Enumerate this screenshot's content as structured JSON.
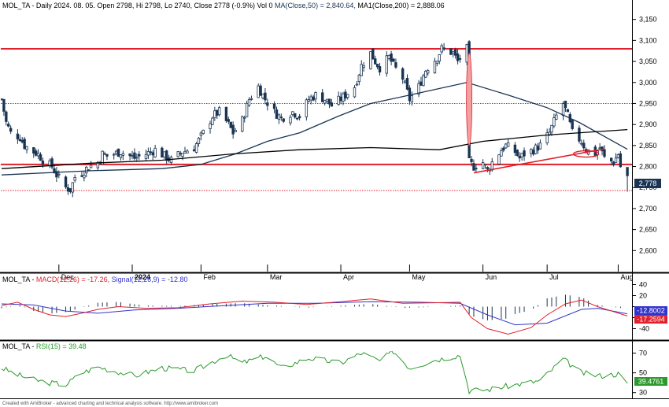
{
  "colors": {
    "price": "#1a3553",
    "ma50": "#1a3553",
    "ma200": "#000000",
    "resistance": "#e0202a",
    "gap_fill": "#f4a0a0",
    "macd_line": "#e0202a",
    "signal_line": "#3333cc",
    "histogram": "#1a3553",
    "rsi_line": "#2d9a2d",
    "badge_price": "#1a3553",
    "badge_signal": "#3333cc",
    "badge_macd": "#e0202a",
    "badge_rsi": "#2d9a2d",
    "separator": "#000000"
  },
  "price_panel": {
    "title_parts": {
      "head": "MOL_TA - Daily 2024. 08. 05. Open 2798, Hi 2798, Lo 2740, Close 2778 (-0.9%) Vol 0 ",
      "ma50": "MA(Close,50) = 2,840.64,",
      "ma200": " MA1(Close,200) = 2,888.06"
    },
    "y_ticks": [
      "3,150",
      "3,100",
      "3,050",
      "3,000",
      "2,950",
      "2,900",
      "2,850",
      "2,800",
      "2,750",
      "2,700",
      "2,650",
      "2,600"
    ],
    "x_labels": [
      "Dec",
      "2024",
      "Feb",
      "Mar",
      "Apr",
      "May",
      "Jun",
      "Jul",
      "Aug"
    ],
    "last_price_badge": "2,778"
  },
  "macd_panel": {
    "title_parts": {
      "head": "MOL_TA - ",
      "macd": "MACD(12,26) = -17.26,",
      "signal": " Signal(12,26,9) = -12.80"
    },
    "y_ticks": [
      "40",
      "20",
      "0",
      "-20",
      "-40"
    ],
    "badge_signal": "-12.8002",
    "badge_macd": "-17.2594"
  },
  "rsi_panel": {
    "title_parts": {
      "head": "MOL_TA - ",
      "rsi": "RSI(15) = 39.48"
    },
    "y_ticks": [
      "70",
      "50",
      "30"
    ],
    "badge_rsi": "39.4761"
  },
  "footer": "Created with AmiBroker - advanced charting and technical analysis software. http://www.amibroker.com",
  "chart_data": [
    {
      "type": "candlestick",
      "title": "MOL_TA - Daily 2024. 08. 05. Open 2798, Hi 2798, Lo 2740, Close 2778 (-0.9%) Vol 0",
      "ylim": [
        2550,
        3170
      ],
      "x_range": [
        "2023-11-06",
        "2024-08-06"
      ],
      "x_ticks": [
        {
          "label": "Dec",
          "date": "2023-12-01"
        },
        {
          "label": "2024",
          "date": "2024-01-02"
        },
        {
          "label": "Feb",
          "date": "2024-02-01"
        },
        {
          "label": "Mar",
          "date": "2024-03-01"
        },
        {
          "label": "Apr",
          "date": "2024-04-02"
        },
        {
          "label": "May",
          "date": "2024-05-02"
        },
        {
          "label": "Jun",
          "date": "2024-06-03"
        },
        {
          "label": "Jul",
          "date": "2024-07-01"
        },
        {
          "label": "Aug",
          "date": "2024-08-01"
        }
      ],
      "close_path": [
        [
          "2023-11-06",
          2960
        ],
        [
          "2023-11-08",
          2905
        ],
        [
          "2023-11-10",
          2880
        ],
        [
          "2023-11-14",
          2870
        ],
        [
          "2023-11-16",
          2850
        ],
        [
          "2023-11-20",
          2835
        ],
        [
          "2023-11-22",
          2830
        ],
        [
          "2023-11-24",
          2815
        ],
        [
          "2023-11-28",
          2800
        ],
        [
          "2023-11-30",
          2780
        ],
        [
          "2023-12-04",
          2750
        ],
        [
          "2023-12-06",
          2745
        ],
        [
          "2023-12-08",
          2775
        ],
        [
          "2023-12-12",
          2790
        ],
        [
          "2023-12-14",
          2800
        ],
        [
          "2023-12-18",
          2810
        ],
        [
          "2023-12-20",
          2830
        ],
        [
          "2023-12-22",
          2825
        ],
        [
          "2023-12-28",
          2835
        ],
        [
          "2024-01-03",
          2820
        ],
        [
          "2024-01-08",
          2830
        ],
        [
          "2024-01-12",
          2840
        ],
        [
          "2024-01-16",
          2825
        ],
        [
          "2024-01-19",
          2815
        ],
        [
          "2024-01-24",
          2835
        ],
        [
          "2024-01-29",
          2845
        ],
        [
          "2024-02-02",
          2880
        ],
        [
          "2024-02-06",
          2920
        ],
        [
          "2024-02-09",
          2930
        ],
        [
          "2024-02-13",
          2900
        ],
        [
          "2024-02-15",
          2880
        ],
        [
          "2024-02-19",
          2910
        ],
        [
          "2024-02-22",
          2960
        ],
        [
          "2024-02-26",
          2990
        ],
        [
          "2024-02-29",
          2960
        ],
        [
          "2024-03-04",
          2930
        ],
        [
          "2024-03-07",
          2915
        ],
        [
          "2024-03-12",
          2930
        ],
        [
          "2024-03-15",
          2920
        ],
        [
          "2024-03-19",
          2960
        ],
        [
          "2024-03-22",
          2970
        ],
        [
          "2024-03-26",
          2960
        ],
        [
          "2024-03-29",
          2945
        ],
        [
          "2024-04-03",
          2965
        ],
        [
          "2024-04-08",
          2990
        ],
        [
          "2024-04-11",
          3040
        ],
        [
          "2024-04-15",
          3070
        ],
        [
          "2024-04-17",
          3050
        ],
        [
          "2024-04-19",
          3035
        ],
        [
          "2024-04-23",
          3060
        ],
        [
          "2024-04-25",
          3040
        ],
        [
          "2024-04-29",
          3010
        ],
        [
          "2024-05-02",
          2960
        ],
        [
          "2024-05-06",
          2990
        ],
        [
          "2024-05-09",
          3030
        ],
        [
          "2024-05-14",
          3060
        ],
        [
          "2024-05-16",
          3080
        ],
        [
          "2024-05-21",
          3070
        ],
        [
          "2024-05-23",
          3050
        ],
        [
          "2024-05-27",
          3080
        ],
        [
          "2024-05-28",
          2810
        ],
        [
          "2024-05-30",
          2800
        ],
        [
          "2024-06-03",
          2810
        ],
        [
          "2024-06-05",
          2790
        ],
        [
          "2024-06-07",
          2810
        ],
        [
          "2024-06-11",
          2840
        ],
        [
          "2024-06-13",
          2850
        ],
        [
          "2024-06-17",
          2835
        ],
        [
          "2024-06-19",
          2820
        ],
        [
          "2024-06-21",
          2830
        ],
        [
          "2024-06-25",
          2840
        ],
        [
          "2024-06-28",
          2850
        ],
        [
          "2024-07-02",
          2880
        ],
        [
          "2024-07-05",
          2920
        ],
        [
          "2024-07-08",
          2950
        ],
        [
          "2024-07-10",
          2920
        ],
        [
          "2024-07-12",
          2880
        ],
        [
          "2024-07-16",
          2860
        ],
        [
          "2024-07-18",
          2840
        ],
        [
          "2024-07-22",
          2830
        ],
        [
          "2024-07-24",
          2845
        ],
        [
          "2024-07-26",
          2820
        ],
        [
          "2024-07-30",
          2810
        ],
        [
          "2024-08-01",
          2830
        ],
        [
          "2024-08-02",
          2800
        ],
        [
          "2024-08-05",
          2778
        ]
      ],
      "last_bar": {
        "date": "2024-08-05",
        "open": 2798,
        "high": 2798,
        "low": 2740,
        "close": 2778
      },
      "series": [
        {
          "name": "MA(Close,50)",
          "values": [
            [
              "2023-11-06",
              2780
            ],
            [
              "2023-12-15",
              2790
            ],
            [
              "2024-01-15",
              2795
            ],
            [
              "2024-02-01",
              2805
            ],
            [
              "2024-02-16",
              2830
            ],
            [
              "2024-03-01",
              2860
            ],
            [
              "2024-03-15",
              2880
            ],
            [
              "2024-04-01",
              2920
            ],
            [
              "2024-04-15",
              2950
            ],
            [
              "2024-05-02",
              2970
            ],
            [
              "2024-05-27",
              3000
            ],
            [
              "2024-06-14",
              2970
            ],
            [
              "2024-07-01",
              2940
            ],
            [
              "2024-07-15",
              2905
            ],
            [
              "2024-08-05",
              2841
            ]
          ]
        },
        {
          "name": "MA1(Close,200)",
          "values": [
            [
              "2023-11-06",
              2795
            ],
            [
              "2023-12-15",
              2808
            ],
            [
              "2024-01-15",
              2815
            ],
            [
              "2024-02-15",
              2830
            ],
            [
              "2024-03-15",
              2840
            ],
            [
              "2024-04-15",
              2845
            ],
            [
              "2024-05-15",
              2840
            ],
            [
              "2024-06-03",
              2860
            ],
            [
              "2024-07-01",
              2875
            ],
            [
              "2024-08-05",
              2888
            ]
          ]
        }
      ],
      "annotations": [
        {
          "kind": "horizontal",
          "value": 3080
        },
        {
          "kind": "horizontal-dotted",
          "value": 2950
        },
        {
          "kind": "horizontal",
          "value": 2805
        },
        {
          "kind": "horizontal-dotted",
          "value": 2743
        },
        {
          "kind": "trendline",
          "from": [
            "2024-05-30",
            2785
          ],
          "to": [
            "2024-07-26",
            2842
          ]
        },
        {
          "kind": "gap-ellipse",
          "date": "2024-05-28",
          "from": 2850,
          "to": 3070
        },
        {
          "kind": "ellipse",
          "date": "2024-07-18",
          "value": 2830
        }
      ],
      "last_price_label": 2778
    },
    {
      "type": "line",
      "title": "MACD(12,26) = -17.26, Signal(12,26,9) = -12.80",
      "ylim": [
        -55,
        55
      ],
      "series": [
        {
          "name": "MACD(12,26)",
          "values": [
            [
              "2023-11-06",
              2
            ],
            [
              "2023-11-13",
              8
            ],
            [
              "2023-11-20",
              -5
            ],
            [
              "2023-11-27",
              -15
            ],
            [
              "2023-12-04",
              -18
            ],
            [
              "2023-12-11",
              -12
            ],
            [
              "2023-12-18",
              -5
            ],
            [
              "2023-12-27",
              0
            ],
            [
              "2024-01-08",
              -3
            ],
            [
              "2024-01-22",
              -2
            ],
            [
              "2024-02-05",
              5
            ],
            [
              "2024-02-19",
              10
            ],
            [
              "2024-03-04",
              8
            ],
            [
              "2024-03-18",
              4
            ],
            [
              "2024-04-02",
              9
            ],
            [
              "2024-04-15",
              14
            ],
            [
              "2024-04-29",
              6
            ],
            [
              "2024-05-13",
              7
            ],
            [
              "2024-05-24",
              8
            ],
            [
              "2024-05-29",
              -20
            ],
            [
              "2024-06-05",
              -40
            ],
            [
              "2024-06-14",
              -50
            ],
            [
              "2024-06-24",
              -38
            ],
            [
              "2024-07-01",
              -15
            ],
            [
              "2024-07-09",
              5
            ],
            [
              "2024-07-16",
              12
            ],
            [
              "2024-07-23",
              0
            ],
            [
              "2024-08-05",
              -17
            ]
          ]
        },
        {
          "name": "Signal(12,26,9)",
          "values": [
            [
              "2023-11-06",
              5
            ],
            [
              "2023-11-20",
              3
            ],
            [
              "2023-12-04",
              -8
            ],
            [
              "2023-12-18",
              -12
            ],
            [
              "2024-01-03",
              -6
            ],
            [
              "2024-01-22",
              -3
            ],
            [
              "2024-02-12",
              2
            ],
            [
              "2024-03-01",
              6
            ],
            [
              "2024-03-22",
              6
            ],
            [
              "2024-04-15",
              9
            ],
            [
              "2024-05-06",
              8
            ],
            [
              "2024-05-24",
              6
            ],
            [
              "2024-06-05",
              -15
            ],
            [
              "2024-06-17",
              -33
            ],
            [
              "2024-07-01",
              -30
            ],
            [
              "2024-07-16",
              -5
            ],
            [
              "2024-07-23",
              -3
            ],
            [
              "2024-08-05",
              -13
            ]
          ]
        }
      ]
    },
    {
      "type": "line",
      "title": "RSI(15) = 39.48",
      "ylim": [
        25,
        80
      ],
      "series": [
        {
          "name": "RSI(15)",
          "values": [
            [
              "2023-11-06",
              55
            ],
            [
              "2023-11-13",
              48
            ],
            [
              "2023-11-20",
              43
            ],
            [
              "2023-11-27",
              40
            ],
            [
              "2023-12-04",
              38
            ],
            [
              "2023-12-11",
              50
            ],
            [
              "2023-12-18",
              56
            ],
            [
              "2024-01-03",
              47
            ],
            [
              "2024-01-15",
              55
            ],
            [
              "2024-01-29",
              52
            ],
            [
              "2024-02-12",
              68
            ],
            [
              "2024-02-19",
              60
            ],
            [
              "2024-02-29",
              67
            ],
            [
              "2024-03-07",
              55
            ],
            [
              "2024-03-19",
              65
            ],
            [
              "2024-04-02",
              60
            ],
            [
              "2024-04-11",
              70
            ],
            [
              "2024-04-19",
              62
            ],
            [
              "2024-04-25",
              72
            ],
            [
              "2024-05-02",
              55
            ],
            [
              "2024-05-13",
              63
            ],
            [
              "2024-05-24",
              68
            ],
            [
              "2024-05-28",
              32
            ],
            [
              "2024-06-05",
              33
            ],
            [
              "2024-06-17",
              38
            ],
            [
              "2024-06-28",
              42
            ],
            [
              "2024-07-08",
              64
            ],
            [
              "2024-07-16",
              50
            ],
            [
              "2024-07-24",
              47
            ],
            [
              "2024-08-01",
              49
            ],
            [
              "2024-08-05",
              39.5
            ]
          ]
        }
      ]
    }
  ]
}
